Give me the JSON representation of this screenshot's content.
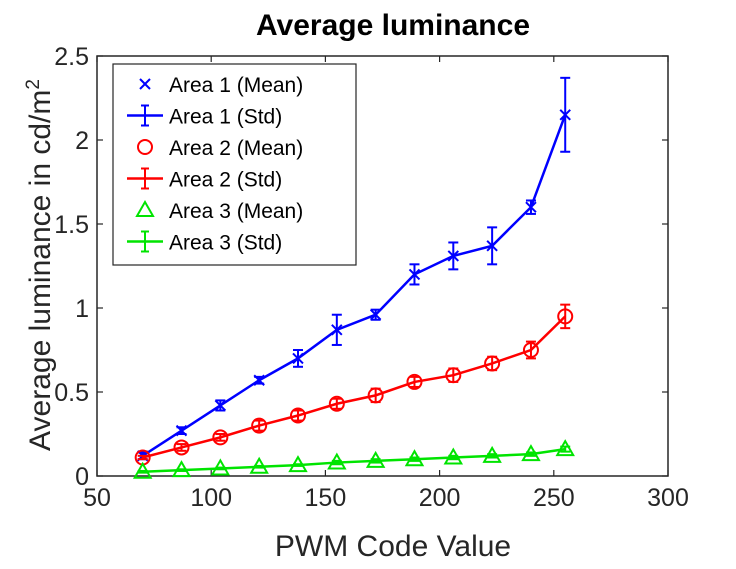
{
  "chart_data": {
    "type": "line",
    "title": "Average luminance",
    "xlabel": "PWM Code Value",
    "ylabel": "Average luminance in cd/m",
    "ylabel_superscript": "2",
    "xlim": [
      50,
      300
    ],
    "ylim": [
      0,
      2.5
    ],
    "xticks": [
      50,
      100,
      150,
      200,
      250,
      300
    ],
    "yticks": [
      0,
      0.5,
      1,
      1.5,
      2,
      2.5
    ],
    "xtick_labels": [
      "50",
      "100",
      "150",
      "200",
      "250",
      "300"
    ],
    "ytick_labels": [
      "0",
      "0.5",
      "1",
      "1.5",
      "2",
      "2.5"
    ],
    "grid": false,
    "legend_position": "top-left",
    "x": [
      70,
      87,
      104,
      121,
      138,
      155,
      172,
      189,
      206,
      223,
      240,
      255
    ],
    "series": [
      {
        "name_mean": "Area 1 (Mean)",
        "name_std": "Area 1 (Std)",
        "color": "#0000ff",
        "marker": "x",
        "values": [
          0.12,
          0.27,
          0.42,
          0.57,
          0.7,
          0.87,
          0.96,
          1.2,
          1.31,
          1.37,
          1.6,
          2.15
        ],
        "std": [
          0.02,
          0.02,
          0.03,
          0.02,
          0.05,
          0.09,
          0.03,
          0.06,
          0.08,
          0.11,
          0.04,
          0.22
        ]
      },
      {
        "name_mean": "Area 2 (Mean)",
        "name_std": "Area 2 (Std)",
        "color": "#ff0000",
        "marker": "o",
        "values": [
          0.11,
          0.17,
          0.23,
          0.3,
          0.36,
          0.43,
          0.48,
          0.56,
          0.6,
          0.67,
          0.75,
          0.95
        ],
        "std": [
          0.01,
          0.02,
          0.02,
          0.03,
          0.03,
          0.03,
          0.04,
          0.03,
          0.04,
          0.04,
          0.05,
          0.07
        ]
      },
      {
        "name_mean": "Area 3 (Mean)",
        "name_std": "Area 3 (Std)",
        "color": "#00e400",
        "marker": "triangle",
        "values": [
          0.025,
          0.035,
          0.045,
          0.055,
          0.065,
          0.08,
          0.09,
          0.1,
          0.11,
          0.12,
          0.13,
          0.16
        ],
        "std": [
          0.005,
          0.005,
          0.005,
          0.005,
          0.005,
          0.01,
          0.01,
          0.01,
          0.01,
          0.01,
          0.01,
          0.015
        ]
      }
    ]
  }
}
